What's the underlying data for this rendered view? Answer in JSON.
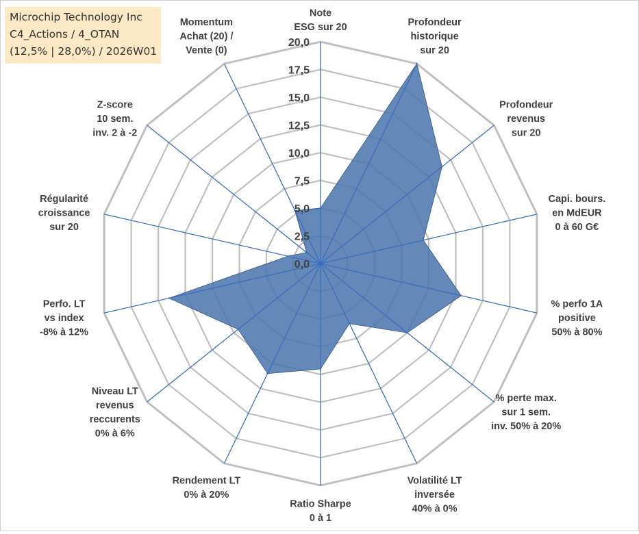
{
  "info_box": {
    "line1": "Microchip Technology Inc",
    "line2": "C4_Actions / 4_OTAN",
    "line3": "(12,5% | 28,0%) / 2026W01"
  },
  "chart_data": {
    "type": "radar",
    "title": "",
    "r_range": [
      0,
      20
    ],
    "r_ticks": [
      "0,0",
      "2,5",
      "5,0",
      "7,5",
      "10,0",
      "12,5",
      "15,0",
      "17,5",
      "20,0"
    ],
    "grid": true,
    "fill_color": "#4f78ad",
    "gridline_color": "#bfbfbf",
    "axis_line_color": "#3a6fc0",
    "categories": [
      [
        "Note",
        "ESG sur 20"
      ],
      [
        "Profondeur",
        "historique",
        "sur 20"
      ],
      [
        "Profondeur",
        "revenus",
        "sur 20"
      ],
      [
        "Capi. bours.",
        "en MdEUR",
        "0 à 60 G€"
      ],
      [
        "% perfo 1A",
        "positive",
        "50% à 80%"
      ],
      [
        "% perte max.",
        "sur 1 sem.",
        "inv. 50% à 20%"
      ],
      [
        "Volatilité LT",
        "inversée",
        "40% à 0%"
      ],
      [
        "Ratio Sharpe",
        "0 à 1"
      ],
      [
        "Rendement LT",
        "0% à 20%"
      ],
      [
        "Niveau LT",
        "revenus",
        "reccurents",
        "0% à 6%"
      ],
      [
        "Perfo. LT",
        "vs index",
        "-8% à 12%"
      ],
      [
        "Régularité",
        "croissance",
        "sur 20"
      ],
      [
        "Z-score",
        "10 sem.",
        "inv. 2 à -2"
      ],
      [
        "Momentum",
        "Achat (20) /",
        "Vente (0)"
      ]
    ],
    "series": [
      {
        "values": [
          5,
          20,
          14,
          9.5,
          13,
          10,
          6,
          9.5,
          11,
          9.5,
          14,
          3,
          1.6,
          5.3
        ]
      }
    ]
  }
}
